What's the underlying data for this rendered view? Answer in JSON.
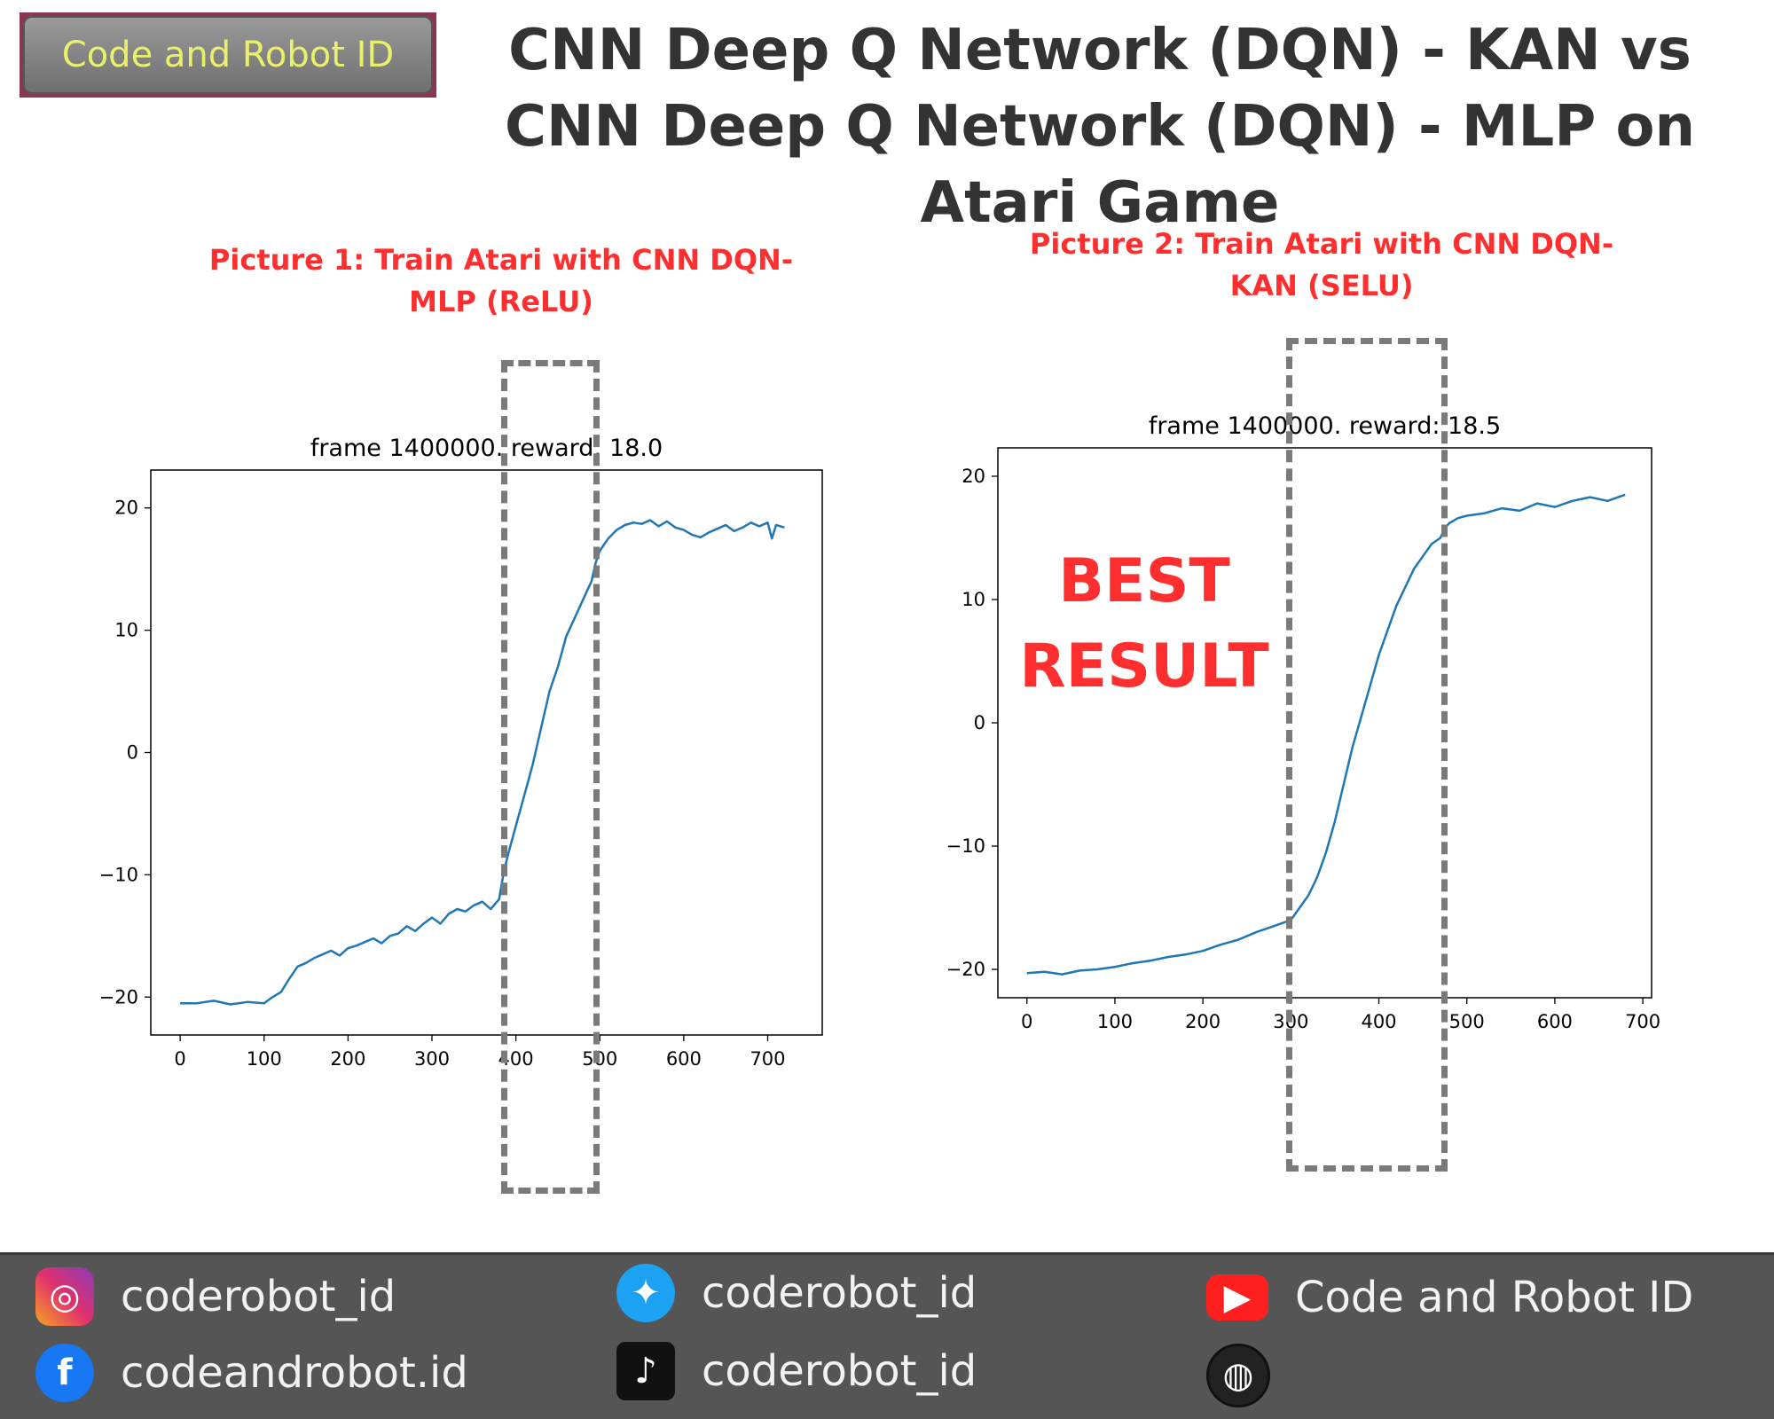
{
  "brand": {
    "badge_label": "Code and Robot ID"
  },
  "header": {
    "title": "CNN Deep Q Network (DQN) - KAN vs CNN Deep Q Network (DQN) - MLP on Atari Game"
  },
  "captions": {
    "picture1": "Picture 1: Train Atari with CNN DQN-MLP (ReLU)",
    "picture2": "Picture 2: Train Atari with CNN DQN-KAN (SELU)",
    "best": "BEST RESULT"
  },
  "chart_data": [
    {
      "type": "line",
      "title": "frame 1400000. reward: 18.0",
      "xlim": [
        -35,
        765
      ],
      "ylim": [
        -23.1,
        23.1
      ],
      "xticks": [
        0,
        100,
        200,
        300,
        400,
        500,
        600,
        700
      ],
      "yticks": [
        -20,
        -10,
        0,
        10,
        20
      ],
      "grid": false,
      "color": "#1f77b4",
      "highlight_range": [
        385,
        495
      ],
      "series": [
        {
          "x": [
            0,
            20,
            40,
            60,
            80,
            100,
            110,
            120,
            130,
            140,
            150,
            160,
            170,
            180,
            190,
            200,
            210,
            220,
            230,
            240,
            250,
            260,
            270,
            280,
            290,
            300,
            310,
            320,
            330,
            340,
            350,
            360,
            370,
            380,
            385,
            390,
            400,
            410,
            420,
            430,
            440,
            450,
            460,
            470,
            480,
            490,
            495,
            500,
            510,
            520,
            530,
            540,
            550,
            560,
            570,
            580,
            590,
            600,
            610,
            620,
            630,
            640,
            650,
            660,
            670,
            680,
            690,
            700,
            705,
            710,
            720
          ],
          "y": [
            -20.5,
            -20.5,
            -20.3,
            -20.6,
            -20.4,
            -20.5,
            -20.0,
            -19.6,
            -18.5,
            -17.5,
            -17.2,
            -16.8,
            -16.5,
            -16.2,
            -16.6,
            -16.0,
            -15.8,
            -15.5,
            -15.2,
            -15.6,
            -15.0,
            -14.8,
            -14.2,
            -14.6,
            -14.0,
            -13.5,
            -14.0,
            -13.2,
            -12.8,
            -13.0,
            -12.5,
            -12.2,
            -12.8,
            -12.0,
            -10.0,
            -8.5,
            -6.0,
            -3.5,
            -1.0,
            2.0,
            5.0,
            7.0,
            9.5,
            11.0,
            12.5,
            14.0,
            15.5,
            16.5,
            17.5,
            18.2,
            18.6,
            18.8,
            18.7,
            19.0,
            18.5,
            18.9,
            18.4,
            18.2,
            17.8,
            17.6,
            18.0,
            18.3,
            18.6,
            18.1,
            18.4,
            18.8,
            18.5,
            18.8,
            17.5,
            18.6,
            18.4
          ]
        }
      ]
    },
    {
      "type": "line",
      "title": "frame 1400000. reward: 18.5",
      "xlim": [
        -33,
        710
      ],
      "ylim": [
        -22.3,
        22.3
      ],
      "xticks": [
        0,
        100,
        200,
        300,
        400,
        500,
        600,
        700
      ],
      "yticks": [
        -20,
        -10,
        0,
        10,
        20
      ],
      "grid": false,
      "color": "#1f77b4",
      "highlight_range": [
        295,
        475
      ],
      "series": [
        {
          "x": [
            0,
            20,
            40,
            60,
            80,
            100,
            120,
            140,
            160,
            180,
            200,
            220,
            240,
            260,
            280,
            300,
            310,
            320,
            330,
            340,
            350,
            360,
            370,
            380,
            390,
            400,
            410,
            420,
            430,
            440,
            450,
            460,
            470,
            475,
            480,
            490,
            500,
            520,
            540,
            560,
            580,
            600,
            620,
            640,
            660,
            680
          ],
          "y": [
            -20.3,
            -20.2,
            -20.4,
            -20.1,
            -20.0,
            -19.8,
            -19.5,
            -19.3,
            -19.0,
            -18.8,
            -18.5,
            -18.0,
            -17.6,
            -17.0,
            -16.5,
            -16.0,
            -15.0,
            -14.0,
            -12.5,
            -10.5,
            -8.0,
            -5.0,
            -2.0,
            0.5,
            3.0,
            5.5,
            7.5,
            9.5,
            11.0,
            12.5,
            13.5,
            14.5,
            15.0,
            15.8,
            16.2,
            16.6,
            16.8,
            17.0,
            17.4,
            17.2,
            17.8,
            17.5,
            18.0,
            18.3,
            18.0,
            18.5
          ]
        }
      ]
    }
  ],
  "footer": {
    "socials": [
      {
        "icon": "instagram-icon",
        "glyph": "◎",
        "label": "coderobot_id"
      },
      {
        "icon": "facebook-icon",
        "glyph": "f",
        "label": "codeandrobot.id"
      },
      {
        "icon": "twitter-icon",
        "glyph": "✦",
        "label": "coderobot_id"
      },
      {
        "icon": "tiktok-icon",
        "glyph": "♪",
        "label": "coderobot_id"
      },
      {
        "icon": "youtube-icon",
        "glyph": "▶",
        "label": "Code and Robot ID"
      },
      {
        "icon": "website-icon",
        "glyph": "◍",
        "label": ""
      }
    ]
  }
}
